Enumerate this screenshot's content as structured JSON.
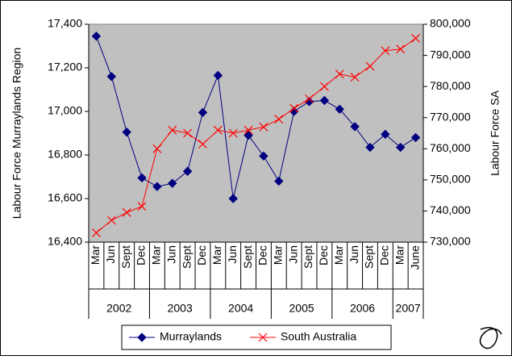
{
  "chart_data": {
    "type": "line",
    "y_label": "Labour Force Murraylands Region",
    "y2_label": "Labour Force SA",
    "groups": [
      {
        "label": "2002",
        "categories": [
          "Mar",
          "Jun",
          "Sept",
          "Dec"
        ]
      },
      {
        "label": "2003",
        "categories": [
          "Mar",
          "Jun",
          "Sept",
          "Dec"
        ]
      },
      {
        "label": "2004",
        "categories": [
          "Mar",
          "Jun",
          "Sept",
          "Dec"
        ]
      },
      {
        "label": "2005",
        "categories": [
          "Mar",
          "Jun",
          "Sept",
          "Dec"
        ]
      },
      {
        "label": "2006",
        "categories": [
          "Mar",
          "Jun",
          "Sept",
          "Dec"
        ]
      },
      {
        "label": "2007",
        "categories": [
          "Mar",
          "June"
        ]
      }
    ],
    "ylim": [
      16400,
      17400
    ],
    "yticks": [
      {
        "value": 16400,
        "label": "16,400"
      },
      {
        "value": 16600,
        "label": "16,600"
      },
      {
        "value": 16800,
        "label": "16,800"
      },
      {
        "value": 17000,
        "label": "17,000"
      },
      {
        "value": 17200,
        "label": "17,200"
      },
      {
        "value": 17400,
        "label": "17,400"
      }
    ],
    "y2lim": [
      730000,
      800000
    ],
    "y2ticks": [
      {
        "value": 730000,
        "label": "730,000"
      },
      {
        "value": 740000,
        "label": "740,000"
      },
      {
        "value": 750000,
        "label": "750,000"
      },
      {
        "value": 760000,
        "label": "760,000"
      },
      {
        "value": 770000,
        "label": "770,000"
      },
      {
        "value": 780000,
        "label": "780,000"
      },
      {
        "value": 790000,
        "label": "790,000"
      },
      {
        "value": 800000,
        "label": "800,000"
      }
    ],
    "series": [
      {
        "name": "Murraylands",
        "color": "#000080",
        "marker": "diamond",
        "values": [
          17345,
          17160,
          16905,
          16695,
          16655,
          16670,
          16725,
          16995,
          17165,
          16600,
          16890,
          16795,
          16680,
          17000,
          17045,
          17050,
          17010,
          16930,
          16835,
          16895,
          16835,
          16880
        ]
      },
      {
        "name": "South Australia",
        "color": "#ff0000",
        "marker": "x",
        "axis": "y2",
        "values": [
          733000,
          737000,
          739500,
          741500,
          760000,
          766000,
          765000,
          761500,
          766000,
          765000,
          766000,
          767000,
          769500,
          773000,
          776000,
          780000,
          784000,
          783000,
          786500,
          791500,
          792000,
          795500
        ]
      }
    ]
  }
}
